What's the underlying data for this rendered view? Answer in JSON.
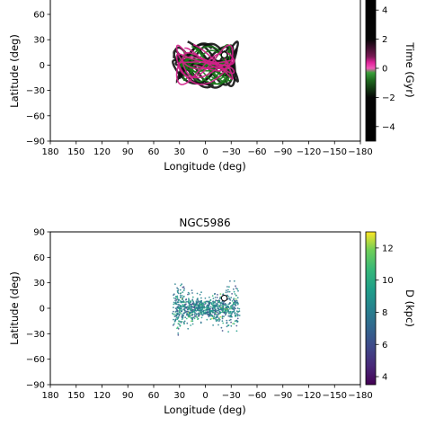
{
  "chart_data": [
    {
      "type": "line",
      "title": "",
      "xlabel": "Longitude (deg)",
      "ylabel": "Latitude (deg)",
      "xlim": [
        180,
        -180
      ],
      "ylim": [
        -90,
        90
      ],
      "x_ticks": [
        180,
        150,
        120,
        90,
        60,
        30,
        0,
        -30,
        -60,
        -90,
        -120,
        -150,
        -180
      ],
      "x_tick_labels": [
        "180",
        "150",
        "120",
        "90",
        "60",
        "30",
        "0",
        "−30",
        "−60",
        "−90",
        "−120",
        "−150",
        "−180"
      ],
      "y_ticks": [
        -90,
        -60,
        -30,
        0,
        30,
        60
      ],
      "y_tick_labels": [
        "−90",
        "−60",
        "−30",
        "0",
        "30",
        "60"
      ],
      "grid": false,
      "series": [
        {
          "name": "",
          "color": "#111111",
          "lon_range": [
            38,
            -38
          ],
          "lat_range": [
            -28,
            32
          ]
        },
        {
          "name": "",
          "color": "#1a7a1a",
          "lon_range": [
            32,
            -32
          ],
          "lat_range": [
            -26,
            28
          ]
        },
        {
          "name": "",
          "color": "#d21f8a",
          "lon_range": [
            34,
            -34
          ],
          "lat_range": [
            -24,
            26
          ]
        }
      ],
      "markers": [
        {
          "label": "",
          "lon": -22,
          "lat": 12,
          "color": "#ffffff"
        }
      ],
      "colorbar": {
        "label": "Time (Gyr)",
        "ticks": [
          4,
          2,
          0,
          -2,
          -4
        ],
        "tick_labels": [
          "4",
          "2",
          "0",
          "−2",
          "−4"
        ],
        "range": [
          -5,
          5
        ],
        "colors": [
          "#000000",
          "#2e8b2e",
          "#e0239a",
          "#000000"
        ]
      }
    },
    {
      "type": "scatter",
      "title": "NGC5986",
      "xlabel": "Longitude (deg)",
      "ylabel": "Latitude (deg)",
      "xlim": [
        180,
        -180
      ],
      "ylim": [
        -90,
        90
      ],
      "x_ticks": [
        180,
        150,
        120,
        90,
        60,
        30,
        0,
        -30,
        -60,
        -90,
        -120,
        -150,
        -180
      ],
      "x_tick_labels": [
        "180",
        "150",
        "120",
        "90",
        "60",
        "30",
        "0",
        "−30",
        "−60",
        "−90",
        "−120",
        "−150",
        "−180"
      ],
      "y_ticks": [
        -90,
        -60,
        -30,
        0,
        30,
        60,
        90
      ],
      "y_tick_labels": [
        "−90",
        "−60",
        "−30",
        "0",
        "30",
        "60",
        "90"
      ],
      "grid": false,
      "points": {
        "lon_range": [
          36,
          -38
        ],
        "lat_range": [
          -30,
          30
        ],
        "color_by": "D (kpc)"
      },
      "markers": [
        {
          "label": "",
          "lon": -22,
          "lat": 12,
          "color": "#ffffff"
        }
      ],
      "colorbar": {
        "label": "D (kpc)",
        "ticks": [
          12,
          10,
          8,
          6,
          4
        ],
        "tick_labels": [
          "12",
          "10",
          "8",
          "6",
          "4"
        ],
        "range": [
          3.5,
          13
        ],
        "colormap": "viridis"
      }
    }
  ]
}
